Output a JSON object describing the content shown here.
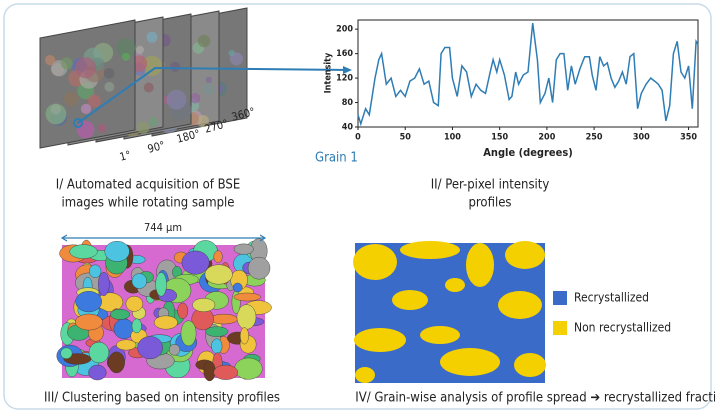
{
  "panels": {
    "acquisition": {
      "caption": [
        "I/ Automated acquisition of BSE",
        "images while rotating sample"
      ],
      "angle_labels": [
        "1°",
        "90°",
        "180°",
        "270°",
        "360°"
      ]
    },
    "profiles": {
      "caption": [
        "II/ Per-pixel intensity",
        "profiles"
      ],
      "grain_label": "Grain 1"
    },
    "clustering": {
      "scale_label": "744 µm",
      "caption": "III/ Clustering based on intensity profiles"
    },
    "analysis": {
      "caption": "IV/ Grain-wise analysis of profile spread ➔ recrystallized fraction",
      "legend": [
        {
          "label": "Recrystallized",
          "color": "#3a6bc9"
        },
        {
          "label": "Non recrystallized",
          "color": "#f5d000"
        }
      ]
    }
  },
  "chart_data": {
    "type": "line",
    "x_label": "Angle (degrees)",
    "y_label": "Intensity",
    "x": [
      0,
      3,
      8,
      12,
      18,
      22,
      25,
      30,
      35,
      40,
      45,
      50,
      55,
      60,
      65,
      70,
      75,
      80,
      85,
      88,
      92,
      97,
      100,
      105,
      110,
      115,
      120,
      125,
      130,
      135,
      140,
      143,
      147,
      150,
      155,
      160,
      163,
      167,
      170,
      175,
      180,
      185,
      190,
      193,
      198,
      202,
      206,
      210,
      214,
      218,
      222,
      226,
      230,
      235,
      240,
      245,
      248,
      252,
      256,
      260,
      264,
      268,
      272,
      276,
      280,
      284,
      288,
      292,
      296,
      300,
      305,
      310,
      314,
      318,
      322,
      326,
      330,
      334,
      338,
      342,
      346,
      350,
      354,
      358,
      360
    ],
    "series": [
      {
        "color": "#2e7db5",
        "values": [
          60,
          45,
          70,
          60,
          120,
          150,
          160,
          110,
          120,
          90,
          100,
          90,
          115,
          120,
          135,
          110,
          115,
          80,
          75,
          160,
          170,
          170,
          120,
          90,
          140,
          130,
          90,
          110,
          100,
          95,
          130,
          150,
          130,
          150,
          125,
          85,
          90,
          130,
          110,
          125,
          130,
          210,
          150,
          80,
          95,
          120,
          80,
          150,
          160,
          160,
          100,
          140,
          110,
          135,
          155,
          155,
          125,
          100,
          155,
          140,
          145,
          120,
          105,
          115,
          130,
          110,
          155,
          160,
          70,
          95,
          110,
          120,
          115,
          110,
          100,
          50,
          75,
          160,
          180,
          130,
          120,
          140,
          70,
          180,
          175
        ]
      }
    ],
    "xlim": [
      0,
      360
    ],
    "ylim": [
      40,
      215
    ],
    "xticks": [
      0,
      50,
      100,
      150,
      200,
      250,
      300,
      350
    ],
    "yticks": [
      40,
      80,
      120,
      160,
      200
    ]
  }
}
